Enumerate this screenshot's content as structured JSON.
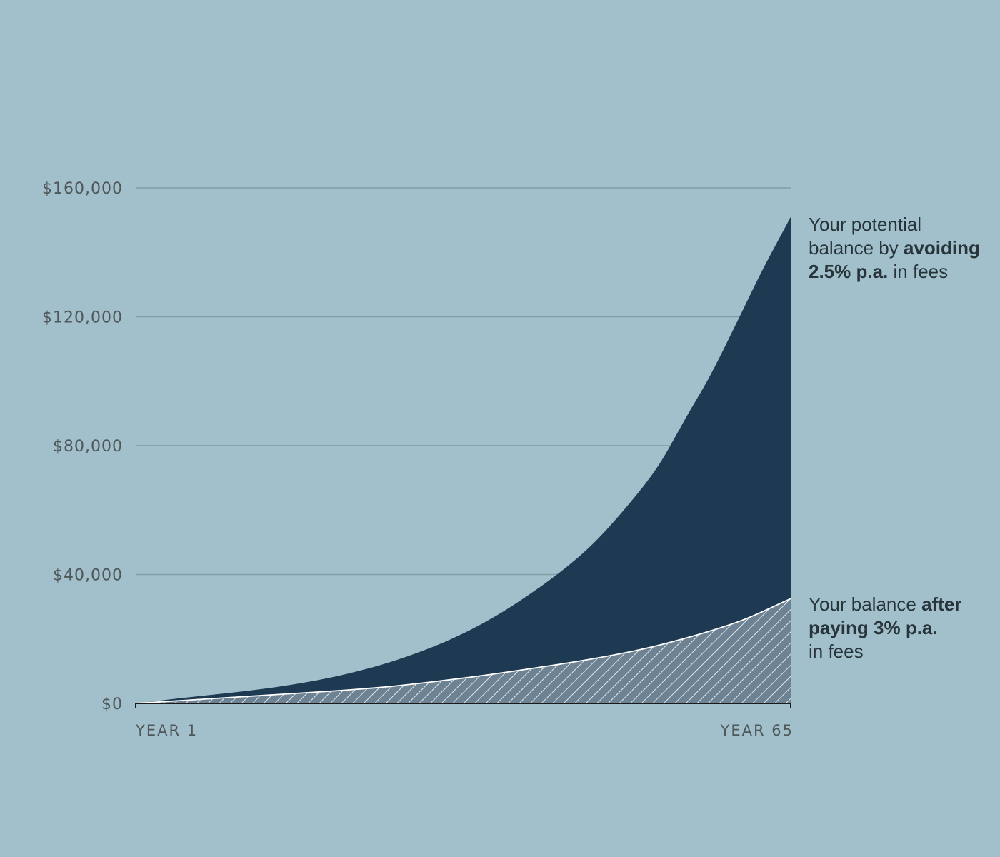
{
  "colors": {
    "background": "#a1c0cb",
    "potential_area": "#1d3a52",
    "after_fees_area": "#6d8394",
    "gridline": "#7f9ea9",
    "text": "#4f5759"
  },
  "chart_data": {
    "type": "area",
    "x_start": 1,
    "x_end": 65,
    "x_tick_labels": [
      "YEAR 1",
      "YEAR 65"
    ],
    "ylim": [
      0,
      160000
    ],
    "y_ticks": [
      0,
      40000,
      80000,
      120000,
      160000
    ],
    "y_tick_labels": [
      "$0",
      "$40,000",
      "$80,000",
      "$120,000",
      "$160,000"
    ],
    "grid": true,
    "series": [
      {
        "key": "potential",
        "style": "solid",
        "x": [
          1,
          5,
          10,
          15,
          20,
          25,
          30,
          35,
          40,
          45,
          50,
          52,
          55,
          57,
          60,
          62,
          65
        ],
        "y": [
          0,
          1500,
          3200,
          5200,
          8000,
          12000,
          17500,
          25000,
          35000,
          47500,
          65000,
          73500,
          90000,
          101000,
          120000,
          133000,
          151000
        ]
      },
      {
        "key": "after_fees",
        "style": "hatched",
        "x": [
          1,
          5,
          10,
          15,
          20,
          25,
          30,
          35,
          40,
          45,
          50,
          55,
          60,
          65
        ],
        "y": [
          0,
          800,
          1800,
          2800,
          3800,
          5000,
          6700,
          8700,
          11000,
          13500,
          16500,
          20500,
          25500,
          32500
        ]
      }
    ]
  },
  "annotations": {
    "potential": {
      "line1": "Your potential",
      "line2_text": "balance by ",
      "line2_bold": "avoiding",
      "line3_bold": "2.5% p.a.",
      "line3_text": " in fees"
    },
    "after_fees": {
      "line1_text": "Your balance ",
      "line1_bold": "after",
      "line2_bold": "paying 3% p.a.",
      "line3": "in fees"
    }
  }
}
